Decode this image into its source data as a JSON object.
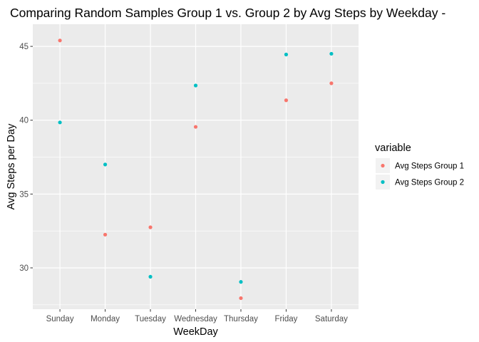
{
  "chart_data": {
    "type": "scatter",
    "title": "Comparing Random Samples Group 1 vs. Group 2 by Avg Steps by Weekday -",
    "xlabel": "WeekDay",
    "ylabel": "Avg Steps per Day",
    "categories": [
      "Sunday",
      "Monday",
      "Tuesday",
      "Wednesday",
      "Thursday",
      "Friday",
      "Saturday"
    ],
    "ylim": [
      27.2,
      46.5
    ],
    "yticks": [
      30,
      35,
      40,
      45
    ],
    "grid": true,
    "legend": {
      "title": "variable",
      "placement": "right"
    },
    "series": [
      {
        "name": "Avg Steps Group 1",
        "color": "#F8766D",
        "values": [
          45.4,
          32.25,
          32.75,
          39.55,
          27.95,
          41.35,
          42.5
        ]
      },
      {
        "name": "Avg Steps Group 2",
        "color": "#00BFC4",
        "values": [
          39.85,
          37.0,
          29.4,
          42.35,
          29.05,
          44.45,
          44.5
        ]
      }
    ]
  }
}
